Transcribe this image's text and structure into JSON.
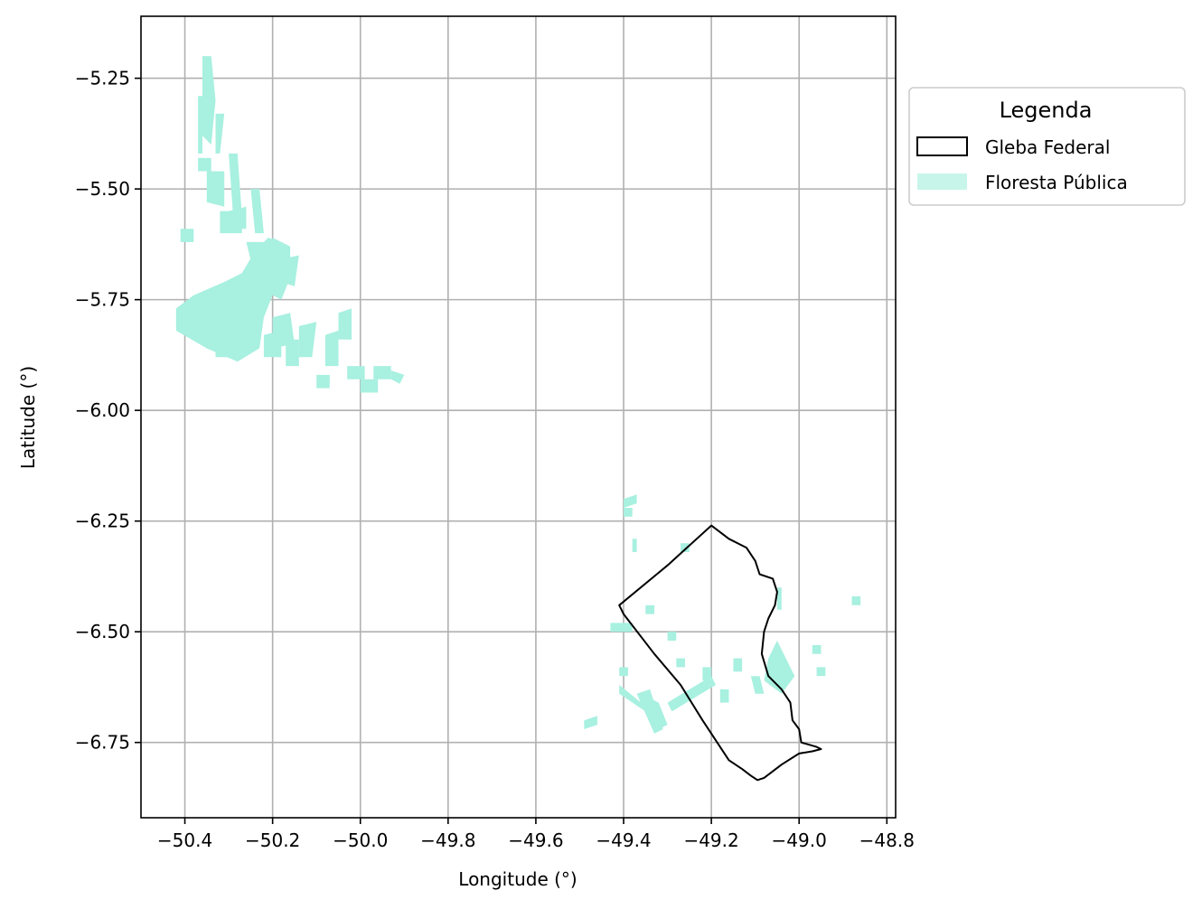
{
  "axes": {
    "xlabel": "Longitude (°)",
    "ylabel": "Latitude (°)",
    "xlim": [
      -50.5,
      -48.78
    ],
    "ylim": [
      -6.92,
      -5.11
    ],
    "xticks": [
      -50.4,
      -50.2,
      -50.0,
      -49.8,
      -49.6,
      -49.4,
      -49.2,
      -49.0,
      -48.8
    ],
    "xtick_labels": [
      "−50.4",
      "−50.2",
      "−50.0",
      "−49.8",
      "−49.6",
      "−49.4",
      "−49.2",
      "−49.0",
      "−48.8"
    ],
    "yticks": [
      -5.25,
      -5.5,
      -5.75,
      -6.0,
      -6.25,
      -6.5,
      -6.75
    ],
    "ytick_labels": [
      "−5.25",
      "−5.50",
      "−5.75",
      "−6.00",
      "−6.25",
      "−6.50",
      "−6.75"
    ],
    "grid": true
  },
  "legend": {
    "title": "Legenda",
    "placement": "outside-upper-right",
    "items": [
      {
        "label": "Gleba Federal",
        "style": "outline",
        "color": "#000000"
      },
      {
        "label": "Floresta Pública",
        "style": "fill",
        "color": "#a8f0e0"
      }
    ]
  },
  "colors": {
    "forest": "#a8f0e0",
    "boundary": "#000000",
    "grid": "#b0b0b0"
  },
  "layers": {
    "gleba_federal": [
      [
        -49.2,
        -6.26
      ],
      [
        -49.16,
        -6.29
      ],
      [
        -49.12,
        -6.31
      ],
      [
        -49.1,
        -6.34
      ],
      [
        -49.09,
        -6.37
      ],
      [
        -49.06,
        -6.38
      ],
      [
        -49.05,
        -6.41
      ],
      [
        -49.055,
        -6.44
      ],
      [
        -49.07,
        -6.47
      ],
      [
        -49.08,
        -6.5
      ],
      [
        -49.085,
        -6.55
      ],
      [
        -49.07,
        -6.6
      ],
      [
        -49.04,
        -6.63
      ],
      [
        -49.02,
        -6.66
      ],
      [
        -49.015,
        -6.7
      ],
      [
        -49.0,
        -6.72
      ],
      [
        -48.995,
        -6.75
      ],
      [
        -48.96,
        -6.76
      ],
      [
        -48.95,
        -6.765
      ],
      [
        -48.97,
        -6.77
      ],
      [
        -49.0,
        -6.775
      ],
      [
        -49.04,
        -6.8
      ],
      [
        -49.08,
        -6.83
      ],
      [
        -49.095,
        -6.835
      ],
      [
        -49.11,
        -6.825
      ],
      [
        -49.13,
        -6.81
      ],
      [
        -49.16,
        -6.79
      ],
      [
        -49.22,
        -6.7
      ],
      [
        -49.27,
        -6.62
      ],
      [
        -49.33,
        -6.55
      ],
      [
        -49.4,
        -6.46
      ],
      [
        -49.41,
        -6.44
      ],
      [
        -49.3,
        -6.35
      ],
      [
        -49.2,
        -6.26
      ]
    ],
    "floresta_publica": [
      [
        [
          -50.42,
          -5.82
        ],
        [
          -50.42,
          -5.77
        ],
        [
          -50.38,
          -5.74
        ],
        [
          -50.31,
          -5.71
        ],
        [
          -50.27,
          -5.69
        ],
        [
          -50.24,
          -5.64
        ],
        [
          -50.21,
          -5.61
        ],
        [
          -50.18,
          -5.62
        ],
        [
          -50.16,
          -5.64
        ],
        [
          -50.18,
          -5.7
        ],
        [
          -50.2,
          -5.74
        ],
        [
          -50.22,
          -5.79
        ],
        [
          -50.23,
          -5.86
        ],
        [
          -50.28,
          -5.89
        ],
        [
          -50.35,
          -5.86
        ]
      ],
      [
        [
          -50.2,
          -5.61
        ],
        [
          -50.16,
          -5.63
        ],
        [
          -50.16,
          -5.7
        ],
        [
          -50.18,
          -5.75
        ],
        [
          -50.2,
          -5.74
        ]
      ],
      [
        [
          -50.26,
          -5.62
        ],
        [
          -50.21,
          -5.62
        ],
        [
          -50.21,
          -5.7
        ],
        [
          -50.24,
          -5.7
        ]
      ],
      [
        [
          -50.35,
          -5.46
        ],
        [
          -50.31,
          -5.46
        ],
        [
          -50.31,
          -5.54
        ],
        [
          -50.35,
          -5.53
        ]
      ],
      [
        [
          -50.37,
          -5.43
        ],
        [
          -50.34,
          -5.43
        ],
        [
          -50.34,
          -5.46
        ],
        [
          -50.37,
          -5.46
        ]
      ],
      [
        [
          -50.41,
          -5.59
        ],
        [
          -50.38,
          -5.59
        ],
        [
          -50.38,
          -5.62
        ],
        [
          -50.41,
          -5.62
        ]
      ],
      [
        [
          -50.36,
          -5.2
        ],
        [
          -50.34,
          -5.2
        ],
        [
          -50.33,
          -5.3
        ],
        [
          -50.34,
          -5.4
        ],
        [
          -50.36,
          -5.38
        ]
      ],
      [
        [
          -50.37,
          -5.29
        ],
        [
          -50.36,
          -5.29
        ],
        [
          -50.36,
          -5.42
        ],
        [
          -50.37,
          -5.42
        ]
      ],
      [
        [
          -50.33,
          -5.33
        ],
        [
          -50.31,
          -5.33
        ],
        [
          -50.32,
          -5.42
        ],
        [
          -50.33,
          -5.42
        ]
      ],
      [
        [
          -50.3,
          -5.42
        ],
        [
          -50.28,
          -5.42
        ],
        [
          -50.27,
          -5.56
        ],
        [
          -50.29,
          -5.56
        ]
      ],
      [
        [
          -50.32,
          -5.55
        ],
        [
          -50.27,
          -5.55
        ],
        [
          -50.27,
          -5.6
        ],
        [
          -50.32,
          -5.6
        ]
      ],
      [
        [
          -50.25,
          -5.5
        ],
        [
          -50.23,
          -5.5
        ],
        [
          -50.22,
          -5.6
        ],
        [
          -50.24,
          -5.6
        ]
      ],
      [
        [
          -50.2,
          -5.79
        ],
        [
          -50.16,
          -5.78
        ],
        [
          -50.15,
          -5.85
        ],
        [
          -50.2,
          -5.86
        ]
      ],
      [
        [
          -50.17,
          -5.84
        ],
        [
          -50.14,
          -5.84
        ],
        [
          -50.14,
          -5.9
        ],
        [
          -50.17,
          -5.9
        ]
      ],
      [
        [
          -50.14,
          -5.81
        ],
        [
          -50.1,
          -5.8
        ],
        [
          -50.11,
          -5.88
        ],
        [
          -50.14,
          -5.88
        ]
      ],
      [
        [
          -50.08,
          -5.83
        ],
        [
          -50.05,
          -5.82
        ],
        [
          -50.05,
          -5.9
        ],
        [
          -50.08,
          -5.9
        ]
      ],
      [
        [
          -50.05,
          -5.78
        ],
        [
          -50.02,
          -5.77
        ],
        [
          -50.02,
          -5.84
        ],
        [
          -50.05,
          -5.84
        ]
      ],
      [
        [
          -50.03,
          -5.9
        ],
        [
          -49.99,
          -5.9
        ],
        [
          -49.99,
          -5.93
        ],
        [
          -50.03,
          -5.93
        ]
      ],
      [
        [
          -50.0,
          -5.93
        ],
        [
          -49.96,
          -5.93
        ],
        [
          -49.96,
          -5.96
        ],
        [
          -50.0,
          -5.96
        ]
      ],
      [
        [
          -49.97,
          -5.9
        ],
        [
          -49.93,
          -5.9
        ],
        [
          -49.93,
          -5.93
        ],
        [
          -49.97,
          -5.93
        ]
      ],
      [
        [
          -49.93,
          -5.91
        ],
        [
          -49.9,
          -5.92
        ],
        [
          -49.91,
          -5.94
        ],
        [
          -49.93,
          -5.93
        ]
      ],
      [
        [
          -50.19,
          -5.66
        ],
        [
          -50.14,
          -5.65
        ],
        [
          -50.15,
          -5.72
        ],
        [
          -50.18,
          -5.71
        ]
      ],
      [
        [
          -50.3,
          -5.55
        ],
        [
          -50.26,
          -5.54
        ],
        [
          -50.26,
          -5.59
        ],
        [
          -50.3,
          -5.59
        ]
      ],
      [
        [
          -50.33,
          -5.86
        ],
        [
          -50.29,
          -5.86
        ],
        [
          -50.29,
          -5.88
        ],
        [
          -50.33,
          -5.88
        ]
      ],
      [
        [
          -50.22,
          -5.83
        ],
        [
          -50.18,
          -5.82
        ],
        [
          -50.18,
          -5.88
        ],
        [
          -50.22,
          -5.88
        ]
      ],
      [
        [
          -50.1,
          -5.92
        ],
        [
          -50.07,
          -5.92
        ],
        [
          -50.07,
          -5.95
        ],
        [
          -50.1,
          -5.95
        ]
      ],
      [
        [
          -49.34,
          -6.65
        ],
        [
          -49.32,
          -6.66
        ],
        [
          -49.3,
          -6.71
        ],
        [
          -49.32,
          -6.72
        ]
      ],
      [
        [
          -49.37,
          -6.64
        ],
        [
          -49.34,
          -6.63
        ],
        [
          -49.31,
          -6.72
        ],
        [
          -49.33,
          -6.73
        ]
      ],
      [
        [
          -49.3,
          -6.66
        ],
        [
          -49.2,
          -6.6
        ],
        [
          -49.19,
          -6.62
        ],
        [
          -49.29,
          -6.68
        ]
      ],
      [
        [
          -49.41,
          -6.62
        ],
        [
          -49.36,
          -6.66
        ],
        [
          -49.35,
          -6.68
        ],
        [
          -49.41,
          -6.64
        ]
      ],
      [
        [
          -49.41,
          -6.58
        ],
        [
          -49.39,
          -6.58
        ],
        [
          -49.39,
          -6.6
        ],
        [
          -49.41,
          -6.6
        ]
      ],
      [
        [
          -49.43,
          -6.48
        ],
        [
          -49.38,
          -6.48
        ],
        [
          -49.38,
          -6.5
        ],
        [
          -49.43,
          -6.5
        ]
      ],
      [
        [
          -49.07,
          -6.56
        ],
        [
          -49.05,
          -6.52
        ],
        [
          -49.01,
          -6.6
        ],
        [
          -49.04,
          -6.64
        ],
        [
          -49.08,
          -6.61
        ]
      ],
      [
        [
          -49.11,
          -6.6
        ],
        [
          -49.09,
          -6.6
        ],
        [
          -49.08,
          -6.64
        ],
        [
          -49.1,
          -6.64
        ]
      ],
      [
        [
          -49.15,
          -6.56
        ],
        [
          -49.13,
          -6.56
        ],
        [
          -49.13,
          -6.59
        ],
        [
          -49.15,
          -6.59
        ]
      ],
      [
        [
          -49.18,
          -6.63
        ],
        [
          -49.16,
          -6.63
        ],
        [
          -49.16,
          -6.66
        ],
        [
          -49.18,
          -6.66
        ]
      ],
      [
        [
          -49.22,
          -6.58
        ],
        [
          -49.2,
          -6.58
        ],
        [
          -49.2,
          -6.61
        ],
        [
          -49.22,
          -6.61
        ]
      ],
      [
        [
          -49.28,
          -6.56
        ],
        [
          -49.26,
          -6.56
        ],
        [
          -49.26,
          -6.58
        ],
        [
          -49.28,
          -6.58
        ]
      ],
      [
        [
          -49.3,
          -6.5
        ],
        [
          -49.28,
          -6.5
        ],
        [
          -49.28,
          -6.52
        ],
        [
          -49.3,
          -6.52
        ]
      ],
      [
        [
          -49.35,
          -6.44
        ],
        [
          -49.33,
          -6.44
        ],
        [
          -49.33,
          -6.46
        ],
        [
          -49.35,
          -6.46
        ]
      ],
      [
        [
          -49.4,
          -6.22
        ],
        [
          -49.38,
          -6.22
        ],
        [
          -49.38,
          -6.24
        ],
        [
          -49.4,
          -6.24
        ]
      ],
      [
        [
          -49.38,
          -6.29
        ],
        [
          -49.37,
          -6.29
        ],
        [
          -49.37,
          -6.32
        ],
        [
          -49.38,
          -6.32
        ]
      ],
      [
        [
          -49.27,
          -6.3
        ],
        [
          -49.25,
          -6.3
        ],
        [
          -49.25,
          -6.32
        ],
        [
          -49.27,
          -6.32
        ]
      ],
      [
        [
          -49.05,
          -6.4
        ],
        [
          -49.04,
          -6.4
        ],
        [
          -49.04,
          -6.45
        ],
        [
          -49.05,
          -6.45
        ]
      ],
      [
        [
          -48.97,
          -6.53
        ],
        [
          -48.95,
          -6.53
        ],
        [
          -48.95,
          -6.55
        ],
        [
          -48.97,
          -6.55
        ]
      ],
      [
        [
          -48.96,
          -6.58
        ],
        [
          -48.94,
          -6.58
        ],
        [
          -48.94,
          -6.6
        ],
        [
          -48.96,
          -6.6
        ]
      ],
      [
        [
          -48.88,
          -6.42
        ],
        [
          -48.86,
          -6.42
        ],
        [
          -48.86,
          -6.44
        ],
        [
          -48.88,
          -6.44
        ]
      ],
      [
        [
          -49.49,
          -6.7
        ],
        [
          -49.46,
          -6.69
        ],
        [
          -49.46,
          -6.71
        ],
        [
          -49.49,
          -6.72
        ]
      ],
      [
        [
          -49.4,
          -6.2
        ],
        [
          -49.37,
          -6.19
        ],
        [
          -49.37,
          -6.21
        ],
        [
          -49.4,
          -6.22
        ]
      ]
    ]
  }
}
